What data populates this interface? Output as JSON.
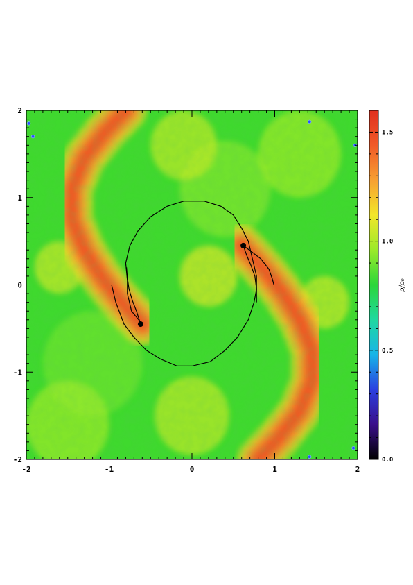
{
  "chart_data": {
    "type": "heatmap",
    "title": "",
    "xlabel": "",
    "ylabel": "",
    "xlim": [
      -2,
      2
    ],
    "ylim": [
      -2,
      2
    ],
    "x_ticks": [
      -2,
      -1,
      0,
      1,
      2
    ],
    "y_ticks": [
      -2,
      -1,
      0,
      1,
      2
    ],
    "x_tick_labels": [
      "-2",
      "-1",
      "0",
      "1",
      "2"
    ],
    "y_tick_labels": [
      "-2",
      "-1",
      "0",
      "1",
      "2"
    ],
    "colorbar": {
      "label": "ρ/ρ₀",
      "range": [
        0.0,
        1.6
      ],
      "ticks": [
        0.0,
        0.5,
        1.0,
        1.5
      ],
      "tick_labels": [
        "0.0",
        "0.5",
        "1.0",
        "1.5"
      ],
      "colormap": [
        "#000000",
        "#3a0f8a",
        "#2a3fe0",
        "#18b4e8",
        "#1fd8a0",
        "#2bd63a",
        "#9bea2a",
        "#f2e62a",
        "#f7a032",
        "#f05a28",
        "#e0301e"
      ]
    },
    "background_value": 1.0,
    "spiral_arms": {
      "peak_value": 1.45,
      "arm_1": [
        [
          0.6,
          0.45
        ],
        [
          0.75,
          0.3
        ],
        [
          0.92,
          0.12
        ],
        [
          1.1,
          -0.1
        ],
        [
          1.3,
          -0.4
        ],
        [
          1.45,
          -0.75
        ],
        [
          1.45,
          -1.1
        ],
        [
          1.3,
          -1.45
        ],
        [
          1.05,
          -1.75
        ],
        [
          0.8,
          -2.0
        ]
      ],
      "arm_2": [
        [
          -0.6,
          -0.45
        ],
        [
          -0.75,
          -0.3
        ],
        [
          -0.92,
          -0.12
        ],
        [
          -1.1,
          0.1
        ],
        [
          -1.3,
          0.4
        ],
        [
          -1.45,
          0.75
        ],
        [
          -1.45,
          1.1
        ],
        [
          -1.3,
          1.45
        ],
        [
          -1.05,
          1.75
        ],
        [
          -0.8,
          2.0
        ]
      ]
    },
    "bodies": [
      {
        "x": 0.62,
        "y": 0.45
      },
      {
        "x": -0.62,
        "y": -0.45
      }
    ],
    "orbit_path": [
      [
        -0.6,
        -0.45
      ],
      [
        -0.73,
        -0.3
      ],
      [
        -0.78,
        -0.1
      ],
      [
        -0.78,
        0.05
      ],
      [
        -0.8,
        0.25
      ],
      [
        -0.75,
        0.45
      ],
      [
        -0.65,
        0.62
      ],
      [
        -0.5,
        0.78
      ],
      [
        -0.3,
        0.9
      ],
      [
        -0.1,
        0.96
      ],
      [
        0.15,
        0.96
      ],
      [
        0.35,
        0.9
      ],
      [
        0.5,
        0.8
      ],
      [
        0.6,
        0.65
      ],
      [
        0.68,
        0.5
      ],
      [
        0.73,
        0.3
      ],
      [
        0.78,
        0.1
      ],
      [
        0.78,
        -0.05
      ],
      [
        0.75,
        -0.2
      ],
      [
        0.68,
        -0.4
      ],
      [
        0.55,
        -0.6
      ],
      [
        0.4,
        -0.75
      ],
      [
        0.22,
        -0.88
      ],
      [
        0.0,
        -0.93
      ],
      [
        -0.18,
        -0.93
      ],
      [
        -0.38,
        -0.85
      ],
      [
        -0.55,
        -0.75
      ],
      [
        -0.7,
        -0.6
      ],
      [
        -0.82,
        -0.45
      ],
      [
        -0.92,
        -0.2
      ],
      [
        -0.97,
        0.0
      ]
    ],
    "trail_segments": [
      [
        [
          0.62,
          0.45
        ],
        [
          0.72,
          0.38
        ],
        [
          0.83,
          0.3
        ],
        [
          0.93,
          0.18
        ],
        [
          0.97,
          0.07
        ],
        [
          0.99,
          0.0
        ]
      ],
      [
        [
          0.62,
          0.45
        ],
        [
          0.66,
          0.34
        ],
        [
          0.71,
          0.23
        ],
        [
          0.76,
          0.1
        ],
        [
          0.78,
          -0.05
        ],
        [
          0.78,
          -0.2
        ]
      ],
      [
        [
          -0.62,
          -0.45
        ],
        [
          -0.67,
          -0.3
        ],
        [
          -0.72,
          -0.18
        ],
        [
          -0.76,
          -0.05
        ],
        [
          -0.78,
          0.08
        ],
        [
          -0.79,
          0.2
        ]
      ]
    ],
    "markers": [
      {
        "x": -1.97,
        "y": 1.85
      },
      {
        "x": -1.92,
        "y": 1.7
      },
      {
        "x": 1.42,
        "y": 1.87
      },
      {
        "x": 1.97,
        "y": 1.6
      },
      {
        "x": 1.95,
        "y": -1.87
      },
      {
        "x": 1.42,
        "y": -1.97
      }
    ]
  }
}
